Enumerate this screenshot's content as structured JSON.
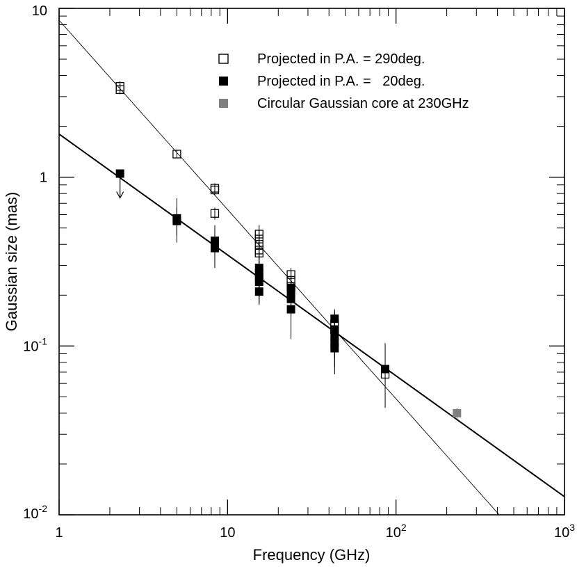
{
  "chart_data": {
    "type": "scatter",
    "title": "",
    "xlabel": "Frequency (GHz)",
    "ylabel": "Gaussian size (mas)",
    "xscale": "log",
    "yscale": "log",
    "xlim": [
      1,
      1000
    ],
    "ylim": [
      0.01,
      10
    ],
    "legend_position": "top-right",
    "x_ticks": [
      {
        "value": 1,
        "base": "1",
        "exp": ""
      },
      {
        "value": 10,
        "base": "10",
        "exp": ""
      },
      {
        "value": 100,
        "base": "10",
        "exp": "2"
      },
      {
        "value": 1000,
        "base": "10",
        "exp": "3"
      }
    ],
    "y_ticks": [
      {
        "value": 0.01,
        "base": "10",
        "exp": "-2"
      },
      {
        "value": 0.1,
        "base": "10",
        "exp": "-1"
      },
      {
        "value": 1,
        "base": "1",
        "exp": ""
      },
      {
        "value": 10,
        "base": "10",
        "exp": ""
      }
    ],
    "series": [
      {
        "name": "Projected in P.A. = 290deg.",
        "marker": "open-square",
        "color": "#000000",
        "points": [
          {
            "x": 2.3,
            "y": 3.45,
            "lo": 3.2,
            "hi": 3.7
          },
          {
            "x": 2.3,
            "y": 3.3,
            "lo": 3.1,
            "hi": 3.55
          },
          {
            "x": 5.0,
            "y": 1.37,
            "lo": 1.3,
            "hi": 1.45
          },
          {
            "x": 8.4,
            "y": 0.86,
            "lo": 0.8,
            "hi": 0.92
          },
          {
            "x": 8.4,
            "y": 0.84,
            "lo": 0.78,
            "hi": 0.9
          },
          {
            "x": 8.4,
            "y": 0.61,
            "lo": 0.56,
            "hi": 0.66
          },
          {
            "x": 15.4,
            "y": 0.46,
            "lo": 0.42,
            "hi": 0.52
          },
          {
            "x": 15.4,
            "y": 0.43,
            "lo": 0.39,
            "hi": 0.48
          },
          {
            "x": 15.4,
            "y": 0.4,
            "lo": 0.36,
            "hi": 0.45
          },
          {
            "x": 15.4,
            "y": 0.37,
            "lo": 0.33,
            "hi": 0.41
          },
          {
            "x": 15.4,
            "y": 0.355,
            "lo": 0.32,
            "hi": 0.4
          },
          {
            "x": 23.8,
            "y": 0.265,
            "lo": 0.24,
            "hi": 0.29
          },
          {
            "x": 23.8,
            "y": 0.245,
            "lo": 0.22,
            "hi": 0.275
          },
          {
            "x": 23.8,
            "y": 0.225,
            "lo": 0.2,
            "hi": 0.25
          },
          {
            "x": 43.2,
            "y": 0.135,
            "lo": 0.12,
            "hi": 0.15
          },
          {
            "x": 43.2,
            "y": 0.125,
            "lo": 0.11,
            "hi": 0.14
          },
          {
            "x": 86.2,
            "y": 0.068,
            "lo": 0.06,
            "hi": 0.077
          }
        ]
      },
      {
        "name": "Projected in P.A. =   20deg.",
        "marker": "filled-square",
        "color": "#000000",
        "points": [
          {
            "x": 2.3,
            "y": 1.05,
            "upper_limit": true
          },
          {
            "x": 5.0,
            "y": 0.57,
            "lo": 0.41,
            "hi": 0.75
          },
          {
            "x": 5.0,
            "y": 0.55,
            "lo": 0.45,
            "hi": 0.66
          },
          {
            "x": 8.4,
            "y": 0.42,
            "lo": 0.33,
            "hi": 0.52
          },
          {
            "x": 8.4,
            "y": 0.4,
            "lo": 0.3,
            "hi": 0.5
          },
          {
            "x": 8.4,
            "y": 0.38,
            "lo": 0.29,
            "hi": 0.47
          },
          {
            "x": 15.4,
            "y": 0.29,
            "lo": 0.22,
            "hi": 0.36
          },
          {
            "x": 15.4,
            "y": 0.27,
            "lo": 0.2,
            "hi": 0.34
          },
          {
            "x": 15.4,
            "y": 0.255,
            "lo": 0.19,
            "hi": 0.32
          },
          {
            "x": 15.4,
            "y": 0.24,
            "lo": 0.18,
            "hi": 0.31
          },
          {
            "x": 15.4,
            "y": 0.21,
            "lo": 0.175,
            "hi": 0.25
          },
          {
            "x": 23.8,
            "y": 0.22,
            "lo": 0.18,
            "hi": 0.28
          },
          {
            "x": 23.8,
            "y": 0.205,
            "lo": 0.16,
            "hi": 0.26
          },
          {
            "x": 23.8,
            "y": 0.19,
            "lo": 0.15,
            "hi": 0.24
          },
          {
            "x": 23.8,
            "y": 0.165,
            "lo": 0.11,
            "hi": 0.22
          },
          {
            "x": 43.2,
            "y": 0.145,
            "lo": 0.115,
            "hi": 0.165
          },
          {
            "x": 43.2,
            "y": 0.125,
            "lo": 0.095,
            "hi": 0.16
          },
          {
            "x": 43.2,
            "y": 0.115,
            "lo": 0.085,
            "hi": 0.15
          },
          {
            "x": 43.2,
            "y": 0.105,
            "lo": 0.075,
            "hi": 0.14
          },
          {
            "x": 43.2,
            "y": 0.097,
            "lo": 0.068,
            "hi": 0.13
          },
          {
            "x": 86.2,
            "y": 0.073,
            "lo": 0.043,
            "hi": 0.104
          }
        ]
      },
      {
        "name": "Circular Gaussian core at 230GHz",
        "marker": "filled-square",
        "color": "#808080",
        "points": [
          {
            "x": 230,
            "y": 0.04,
            "lo": 0.037,
            "hi": 0.043
          }
        ]
      }
    ],
    "fit_lines": [
      {
        "name": "fit-290deg",
        "color": "#000000",
        "width": "thin",
        "from": {
          "x": 1,
          "y": 8.5
        },
        "to": {
          "x": 410,
          "y": 0.01
        }
      },
      {
        "name": "fit-20deg",
        "color": "#000000",
        "width": "thick",
        "from": {
          "x": 1,
          "y": 1.8
        },
        "to": {
          "x": 1000,
          "y": 0.0128
        }
      }
    ]
  }
}
